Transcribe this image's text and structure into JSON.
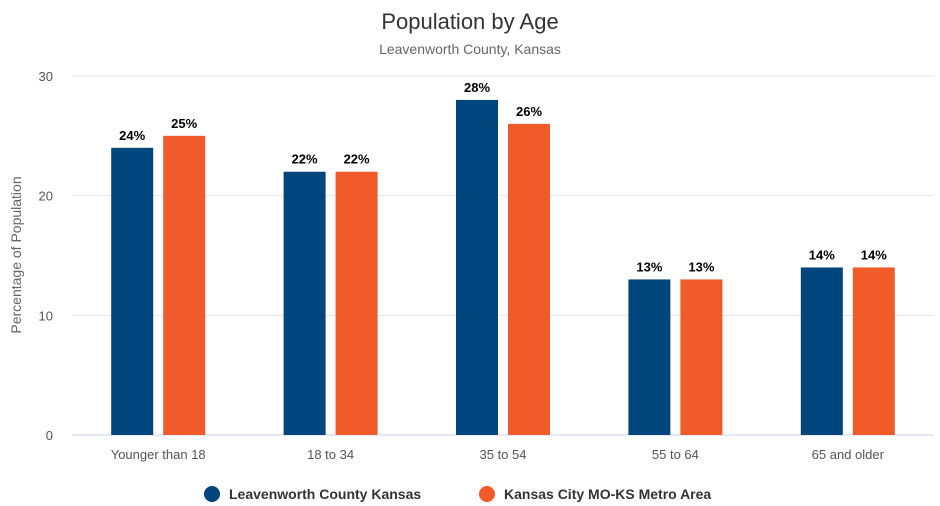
{
  "chart_data": {
    "type": "bar",
    "title": "Population by Age",
    "subtitle": "Leavenworth County, Kansas",
    "xlabel": "",
    "ylabel": "Percentage of Population",
    "ylim": [
      0,
      30
    ],
    "yticks": [
      0,
      10,
      20,
      30
    ],
    "grid": true,
    "legend_position": "bottom",
    "categories": [
      "Younger than 18",
      "18 to 34",
      "35 to 54",
      "55 to 64",
      "65 and older"
    ],
    "series": [
      {
        "name": "Leavenworth County Kansas",
        "color": "#00457c",
        "values": [
          24,
          22,
          28,
          13,
          14
        ],
        "labels": [
          "24%",
          "22%",
          "28%",
          "13%",
          "14%"
        ]
      },
      {
        "name": "Kansas City MO-KS Metro Area",
        "color": "#f15a29",
        "values": [
          25,
          22,
          26,
          13,
          14
        ],
        "labels": [
          "25%",
          "22%",
          "26%",
          "13%",
          "14%"
        ]
      }
    ]
  }
}
